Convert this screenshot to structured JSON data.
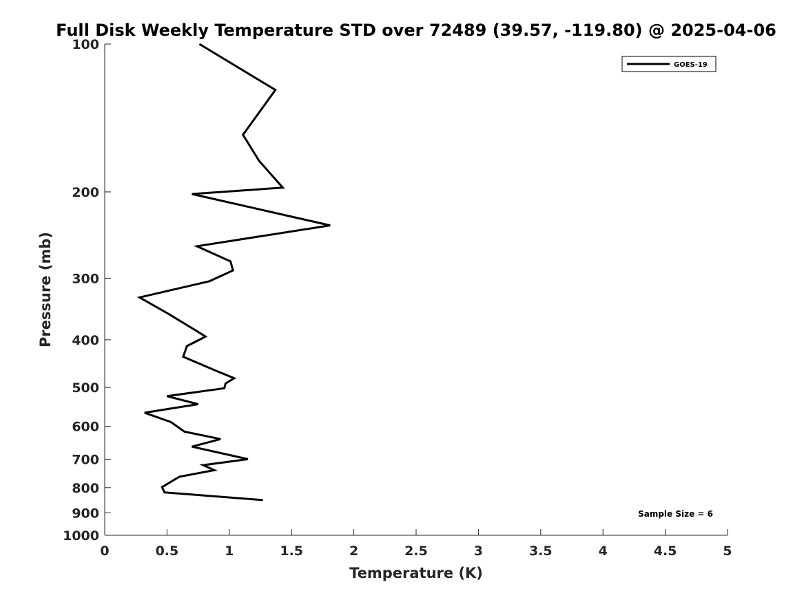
{
  "chart_data": {
    "type": "line",
    "title": "Full Disk Weekly Temperature STD over 72489 (39.57, -119.80) @ 2025-04-06",
    "xlabel": "Temperature (K)",
    "ylabel": "Pressure (mb)",
    "xlim": [
      0,
      5
    ],
    "ylim": [
      100,
      1000
    ],
    "yscale": "log",
    "y_reversed": true,
    "grid": false,
    "legend_position": "top-right",
    "x_ticks": [
      "0",
      "0.5",
      "1",
      "1.5",
      "2",
      "2.5",
      "3",
      "3.5",
      "4",
      "4.5",
      "5"
    ],
    "y_ticks": [
      "100",
      "200",
      "300",
      "400",
      "500",
      "600",
      "700",
      "800",
      "900",
      "1000"
    ],
    "series": [
      {
        "name": "GOES-19",
        "color": "#000000",
        "x": [
          0.76,
          1.37,
          1.11,
          1.24,
          1.43,
          0.7,
          1.81,
          0.74,
          1.01,
          1.03,
          0.84,
          0.28,
          0.51,
          0.71,
          0.81,
          0.66,
          0.63,
          0.89,
          1.04,
          0.97,
          0.96,
          0.5,
          0.75,
          0.32,
          0.53,
          0.64,
          0.93,
          0.7,
          1.15,
          0.79,
          0.88,
          0.6,
          0.46,
          0.48,
          1.27
        ],
        "y": [
          100,
          124,
          153,
          173,
          196,
          202,
          234,
          258,
          277,
          289,
          304,
          328,
          354,
          380,
          394,
          412,
          433,
          462,
          479,
          491,
          502,
          521,
          541,
          563,
          588,
          615,
          637,
          660,
          700,
          720,
          737,
          760,
          798,
          818,
          848
        ]
      }
    ],
    "annotations": [
      {
        "text": "Sample Size = 6"
      }
    ]
  }
}
